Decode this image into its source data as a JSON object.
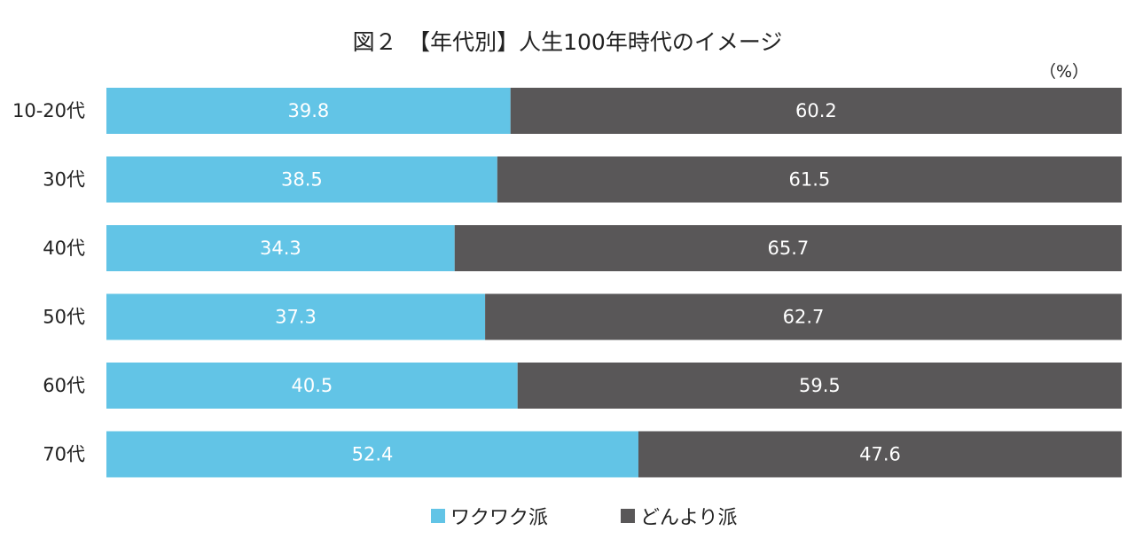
{
  "chart_data": {
    "type": "bar",
    "orientation": "horizontal",
    "stacked": true,
    "title": "図２　【年代別】人生100年時代のイメージ",
    "unit": "（%）",
    "categories": [
      "10-20代",
      "30代",
      "40代",
      "50代",
      "60代",
      "70代"
    ],
    "series": [
      {
        "name": "ワクワク派",
        "color": "#62c4e6",
        "values": [
          39.8,
          38.5,
          34.3,
          37.3,
          40.5,
          52.4
        ]
      },
      {
        "name": "どんより派",
        "color": "#595758",
        "values": [
          60.2,
          61.5,
          65.7,
          62.7,
          59.5,
          47.6
        ]
      }
    ],
    "xlim": [
      0,
      100
    ],
    "grid": false,
    "legend_position": "bottom"
  }
}
